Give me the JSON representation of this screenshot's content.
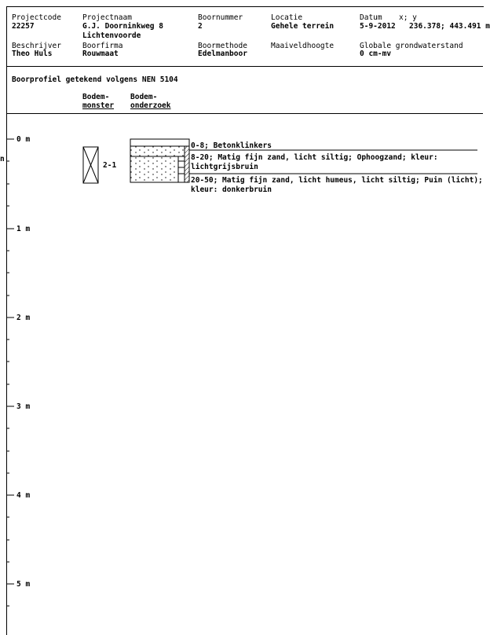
{
  "header": {
    "projectcode": {
      "label": "Projectcode",
      "value": "22257"
    },
    "projectnaam": {
      "label": "Projectnaam",
      "value": "G.J. Doorninkweg 8",
      "value2": "Lichtenvoorde"
    },
    "boornummer": {
      "label": "Boornummer",
      "value": "2"
    },
    "locatie": {
      "label": "Locatie",
      "value": "Gehele terrein"
    },
    "datum": {
      "label": "Datum",
      "value": "5-9-2012"
    },
    "coords": {
      "label": "x; y",
      "value": "236.378; 443.491 m"
    },
    "beschrijver": {
      "label": "Beschrijver",
      "value": "Theo Huls"
    },
    "boorfirma": {
      "label": "Boorfirma",
      "value": "Rouwmaat"
    },
    "boormethode": {
      "label": "Boormethode",
      "value": "Edelmanboor"
    },
    "maaiveldhoogte": {
      "label": "Maaiveldhoogte",
      "value": ""
    },
    "grondwaterstand": {
      "label": "Globale grondwaterstand",
      "value": "0 cm-mv"
    }
  },
  "profile": {
    "title": "Boorprofiel getekend volgens NEN 5104",
    "col_monster_1": "Bodem-",
    "col_monster_2": "monster",
    "col_onderzoek_1": "Bodem-",
    "col_onderzoek_2": "onderzoek",
    "edge_mark": "n",
    "sample_label": "2-1",
    "depth_labels": [
      "0 m",
      "1 m",
      "2 m",
      "3 m",
      "4 m",
      "5 m"
    ],
    "layers": [
      {
        "line1": "0-8; Betonklinkers",
        "line2": ""
      },
      {
        "line1": "8-20; Matig fijn zand, licht siltig; Ophoogzand; kleur:",
        "line2": "lichtgrijsbruin"
      },
      {
        "line1": "20-50; Matig fijn zand, licht humeus, licht siltig; Puin (licht);",
        "line2": "kleur: donkerbruin"
      }
    ]
  }
}
